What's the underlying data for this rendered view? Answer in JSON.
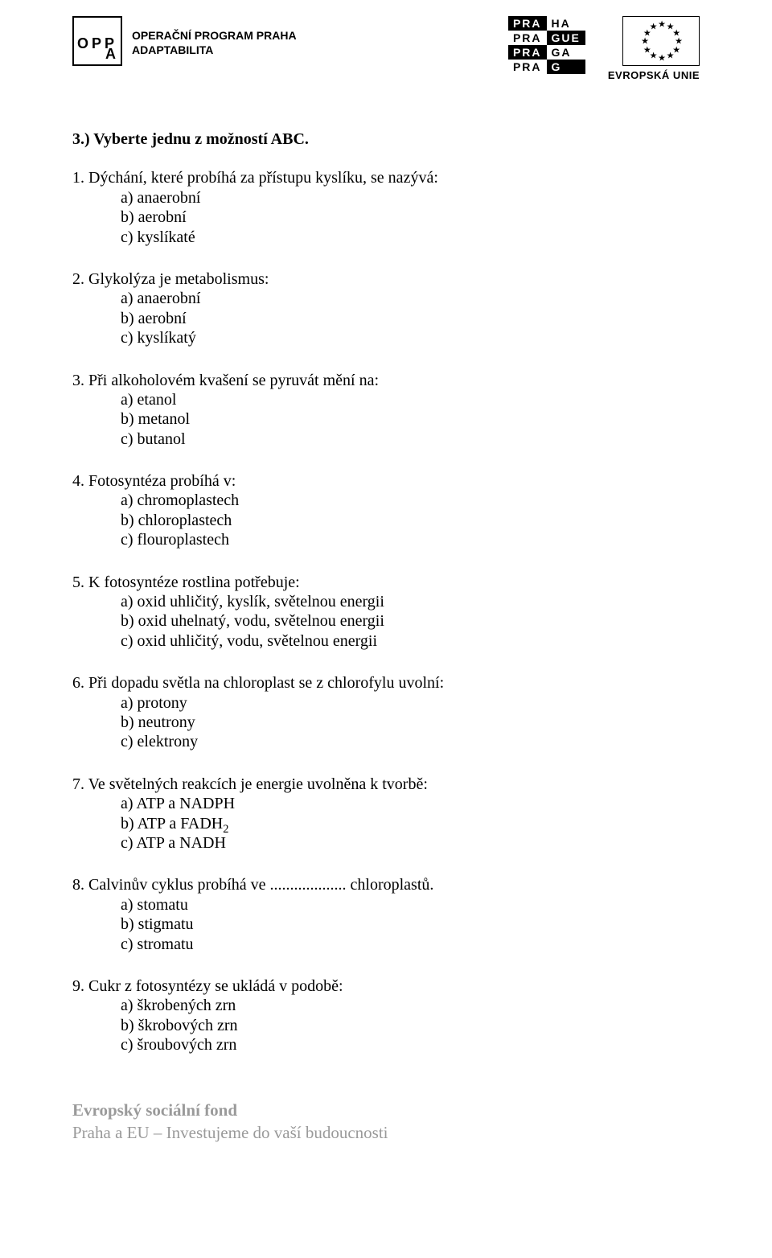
{
  "colors": {
    "text": "#000000",
    "background": "#ffffff",
    "footer_text": "#9a9a9a",
    "logo_black_bg": "#000000",
    "logo_white_bg": "#ffffff"
  },
  "typography": {
    "body_font": "Times New Roman",
    "body_size_pt": 15,
    "logo_font": "Arial"
  },
  "logos": {
    "opp": {
      "row1": "OPP",
      "row2": "A",
      "title_line1": "OPERAČNÍ PROGRAM PRAHA",
      "title_line2": "ADAPTABILITA"
    },
    "prague": {
      "cells": [
        {
          "text": "PRA",
          "variant": "black"
        },
        {
          "text": "HA",
          "variant": "white"
        },
        {
          "text": "PRA",
          "variant": "white"
        },
        {
          "text": "GUE",
          "variant": "black"
        },
        {
          "text": "PRA",
          "variant": "black"
        },
        {
          "text": "GA",
          "variant": "white"
        },
        {
          "text": "PRA",
          "variant": "white"
        },
        {
          "text": "G",
          "variant": "black"
        }
      ]
    },
    "eu_label": "EVROPSKÁ UNIE",
    "eu_star_count": 12
  },
  "section_title": "3.) Vyberte jednu z možností ABC.",
  "questions": [
    {
      "num": "1.",
      "text": "Dýchání, které probíhá za přístupu kyslíku, se nazývá:",
      "options": [
        "a) anaerobní",
        "b) aerobní",
        "c) kyslíkaté"
      ]
    },
    {
      "num": "2.",
      "text": "Glykolýza je metabolismus:",
      "options": [
        "a) anaerobní",
        "b) aerobní",
        "c) kyslíkatý"
      ]
    },
    {
      "num": "3.",
      "text": "Při alkoholovém kvašení se pyruvát mění na:",
      "options": [
        "a) etanol",
        "b) metanol",
        "c) butanol"
      ]
    },
    {
      "num": "4.",
      "text": "Fotosyntéza probíhá v:",
      "options": [
        "a) chromoplastech",
        "b) chloroplastech",
        "c) flouroplastech"
      ]
    },
    {
      "num": "5.",
      "text": "K fotosyntéze rostlina potřebuje:",
      "options": [
        "a) oxid uhličitý, kyslík, světelnou energii",
        "b) oxid uhelnatý, vodu, světelnou energii",
        "c) oxid uhličitý, vodu, světelnou energii"
      ]
    },
    {
      "num": "6.",
      "text": "Při dopadu světla na chloroplast se z chlorofylu uvolní:",
      "options": [
        "a) protony",
        "b) neutrony",
        "c) elektrony"
      ]
    },
    {
      "num": "7.",
      "text": "Ve světelných reakcích je energie uvolněna k tvorbě:",
      "options": [
        "a) ATP a NADPH",
        "b) ATP a FADH₂",
        "c) ATP a NADH"
      ]
    },
    {
      "num": "8.",
      "text": "Calvinův cyklus probíhá ve ................... chloroplastů.",
      "options": [
        "a) stomatu",
        "b) stigmatu",
        "c) stromatu"
      ]
    },
    {
      "num": "9.",
      "text": "Cukr z fotosyntézy se ukládá v podobě:",
      "options": [
        "a) škrobených zrn",
        "b) škrobových zrn",
        "c) šroubových zrn"
      ]
    }
  ],
  "footer": {
    "line1": "Evropský sociální fond",
    "line2": "Praha a EU – Investujeme do vaší budoucnosti"
  }
}
